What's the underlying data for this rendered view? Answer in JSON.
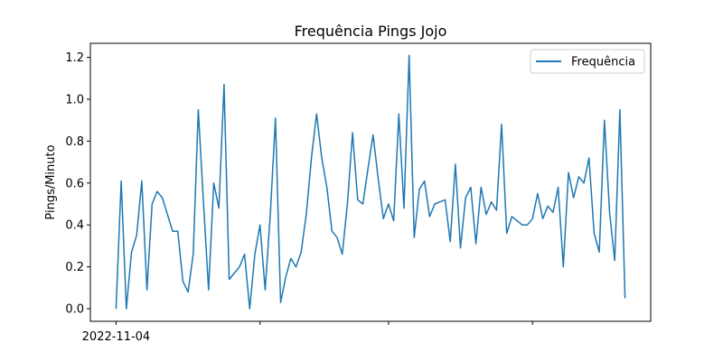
{
  "chart_data": {
    "type": "line",
    "title": "Frequência Pings Jojo",
    "xlabel": "",
    "ylabel": "Pings/Minuto",
    "ylim": [
      -0.06,
      1.267
    ],
    "yticks": [
      0.0,
      0.2,
      0.4,
      0.6,
      0.8,
      1.0,
      1.2
    ],
    "ytick_labels": [
      "0.0",
      "0.2",
      "0.4",
      "0.6",
      "0.8",
      "1.0",
      "1.2"
    ],
    "xticks": [
      {
        "day": 0,
        "label": "2022-11-04"
      },
      {
        "day": 28,
        "label": ""
      },
      {
        "day": 53,
        "label": ""
      },
      {
        "day": 81,
        "label": ""
      }
    ],
    "xlim": [
      -5,
      104
    ],
    "grid": false,
    "legend": {
      "position": "top-right",
      "entries": [
        "Frequência"
      ]
    },
    "colors": {
      "series": "#1f77b4"
    },
    "series": [
      {
        "name": "Frequência",
        "x": [
          0,
          1,
          2,
          3,
          4,
          5,
          6,
          7,
          8,
          9,
          11,
          12,
          13,
          14,
          15,
          16,
          17,
          18,
          19,
          20,
          21,
          22,
          23,
          24,
          25,
          26,
          27,
          28,
          29,
          30,
          31,
          32,
          33,
          34,
          35,
          36,
          37,
          38,
          39,
          40,
          41,
          42,
          43,
          44,
          45,
          46,
          47,
          48,
          49,
          50,
          51,
          52,
          53,
          54,
          55,
          56,
          57,
          58,
          59,
          60,
          61,
          62,
          63,
          64,
          65,
          66,
          67,
          68,
          69,
          70,
          71,
          72,
          73,
          74,
          75,
          76,
          77,
          78,
          79,
          80,
          81,
          82,
          83,
          84,
          85,
          86,
          87,
          88,
          89,
          90,
          91,
          92,
          93,
          94,
          95,
          96,
          97,
          98,
          99
        ],
        "y": [
          0.0,
          0.61,
          0.0,
          0.27,
          0.35,
          0.61,
          0.09,
          0.5,
          0.56,
          0.53,
          0.37,
          0.37,
          0.13,
          0.08,
          0.26,
          0.95,
          0.51,
          0.09,
          0.6,
          0.48,
          1.07,
          0.14,
          0.17,
          0.2,
          0.26,
          0.0,
          0.26,
          0.4,
          0.09,
          0.45,
          0.91,
          0.03,
          0.15,
          0.24,
          0.2,
          0.27,
          0.45,
          0.72,
          0.93,
          0.72,
          0.58,
          0.37,
          0.34,
          0.26,
          0.5,
          0.84,
          0.52,
          0.5,
          0.67,
          0.83,
          0.62,
          0.43,
          0.5,
          0.42,
          0.93,
          0.48,
          1.21,
          0.34,
          0.57,
          0.61,
          0.44,
          0.5,
          0.51,
          0.52,
          0.32,
          0.69,
          0.29,
          0.53,
          0.58,
          0.31,
          0.58,
          0.45,
          0.51,
          0.47,
          0.88,
          0.36,
          0.44,
          0.42,
          0.4,
          0.4,
          0.43,
          0.55,
          0.43,
          0.49,
          0.46,
          0.58,
          0.2,
          0.65,
          0.53,
          0.63,
          0.6,
          0.72,
          0.36,
          0.27,
          0.9,
          0.46,
          0.23,
          0.95,
          0.05
        ]
      }
    ]
  }
}
